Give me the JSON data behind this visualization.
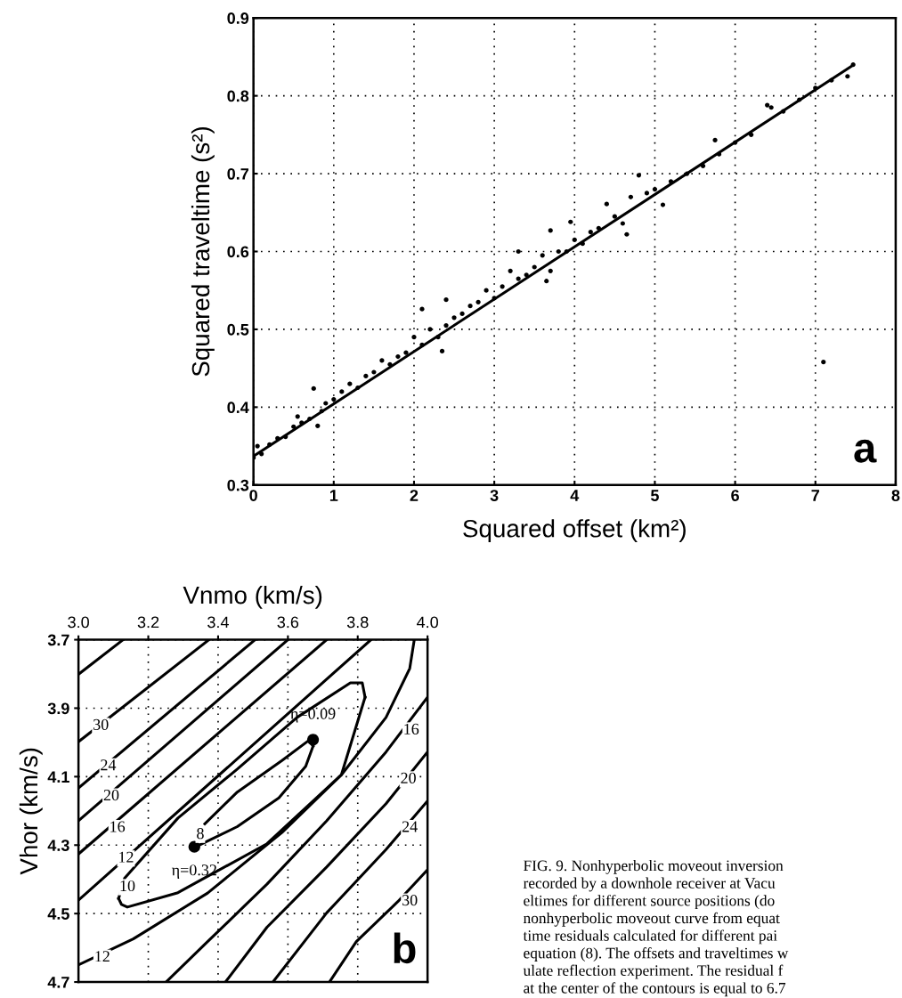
{
  "chart_data": [
    {
      "type": "scatter",
      "title": "a",
      "xlabel": "Squared offset (km²)",
      "ylabel": "Squared traveltime (s²)",
      "xlim": [
        0,
        8
      ],
      "ylim": [
        0.3,
        0.9
      ],
      "xticks": [
        0,
        1,
        2,
        3,
        4,
        5,
        6,
        7,
        8
      ],
      "yticks": [
        0.3,
        0.4,
        0.5,
        0.6,
        0.7,
        0.8,
        0.9
      ],
      "grid": true,
      "series": [
        {
          "type": "scatter",
          "color": "#000000",
          "marker": "circle",
          "x": [
            0.0,
            0.05,
            0.1,
            0.2,
            0.3,
            0.4,
            0.5,
            0.55,
            0.6,
            0.7,
            0.75,
            0.8,
            0.85,
            0.9,
            1.0,
            1.1,
            1.2,
            1.3,
            1.4,
            1.5,
            1.6,
            1.7,
            1.8,
            1.9,
            2.0,
            2.1,
            2.1,
            2.2,
            2.3,
            2.35,
            2.4,
            2.4,
            2.5,
            2.6,
            2.7,
            2.8,
            2.9,
            3.0,
            3.1,
            3.2,
            3.3,
            3.3,
            3.4,
            3.5,
            3.6,
            3.65,
            3.7,
            3.7,
            3.8,
            3.9,
            3.95,
            4.0,
            4.1,
            4.2,
            4.3,
            4.4,
            4.5,
            4.6,
            4.65,
            4.7,
            4.8,
            4.9,
            5.0,
            5.1,
            5.2,
            5.4,
            5.6,
            5.75,
            5.8,
            6.0,
            6.2,
            6.4,
            6.45,
            6.6,
            6.8,
            7.0,
            7.1,
            7.2,
            7.4,
            7.47
          ],
          "values": [
            0.335,
            0.35,
            0.34,
            0.352,
            0.36,
            0.362,
            0.375,
            0.388,
            0.38,
            0.385,
            0.424,
            0.376,
            0.395,
            0.405,
            0.41,
            0.42,
            0.43,
            0.425,
            0.44,
            0.445,
            0.46,
            0.455,
            0.465,
            0.47,
            0.49,
            0.48,
            0.526,
            0.5,
            0.49,
            0.472,
            0.505,
            0.538,
            0.515,
            0.52,
            0.53,
            0.535,
            0.55,
            0.54,
            0.555,
            0.575,
            0.565,
            0.6,
            0.57,
            0.58,
            0.595,
            0.562,
            0.575,
            0.627,
            0.6,
            0.6,
            0.638,
            0.615,
            0.61,
            0.625,
            0.63,
            0.661,
            0.645,
            0.636,
            0.622,
            0.67,
            0.698,
            0.675,
            0.68,
            0.66,
            0.69,
            0.7,
            0.71,
            0.743,
            0.725,
            0.74,
            0.75,
            0.788,
            0.785,
            0.78,
            0.795,
            0.81,
            0.458,
            0.82,
            0.825,
            0.84
          ]
        },
        {
          "type": "line",
          "color": "#000000",
          "x": [
            0,
            7.45
          ],
          "values": [
            0.337,
            0.838
          ]
        }
      ]
    },
    {
      "type": "line",
      "title": "b",
      "xlabel": "Vnmo (km/s)",
      "ylabel": "Vhor (km/s)",
      "xlim": [
        3.0,
        4.0
      ],
      "ylim": [
        4.7,
        3.7
      ],
      "xticks": [
        {
          "value": 3.0,
          "label": "3.0"
        },
        3.2,
        3.4,
        3.6,
        3.8,
        {
          "value": 4.0,
          "label": "4.0"
        }
      ],
      "yticks": [
        3.7,
        3.9,
        4.1,
        4.3,
        4.5,
        4.7
      ],
      "grid": true,
      "series": [
        {
          "color": "#000000",
          "x": [
            3.0,
            3.128
          ],
          "values": [
            3.801,
            3.7
          ]
        },
        {
          "color": "#000000",
          "x": [
            3.0,
            3.374
          ],
          "values": [
            3.998,
            3.7
          ]
        },
        {
          "color": "#000000",
          "x": [
            3.0,
            3.506
          ],
          "values": [
            4.133,
            3.7
          ]
        },
        {
          "color": "#000000",
          "x": [
            3.0,
            3.6
          ],
          "values": [
            4.229,
            3.7
          ]
        },
        {
          "color": "#000000",
          "x": [
            3.0,
            3.711
          ],
          "values": [
            4.326,
            3.7
          ]
        },
        {
          "color": "#000000",
          "x": [
            3.0,
            3.838
          ],
          "values": [
            4.461,
            3.7
          ]
        },
        {
          "color": "#000000",
          "x": [
            3.0,
            3.157,
            3.37,
            3.583,
            3.753,
            3.881,
            3.949,
            3.962
          ],
          "values": [
            4.65,
            4.574,
            4.44,
            4.263,
            4.095,
            3.927,
            3.784,
            3.7
          ]
        },
        {
          "color": "#000000",
          "x": [
            4.0,
            3.881,
            3.711,
            3.54,
            3.37,
            3.251
          ],
          "values": [
            3.868,
            4.028,
            4.229,
            4.414,
            4.582,
            4.7
          ]
        },
        {
          "color": "#000000",
          "x": [
            4.0,
            3.881,
            3.711,
            3.54,
            3.421
          ],
          "values": [
            4.028,
            4.179,
            4.364,
            4.54,
            4.7
          ]
        },
        {
          "color": "#000000",
          "x": [
            4.0,
            3.881,
            3.711,
            3.557
          ],
          "values": [
            4.171,
            4.313,
            4.498,
            4.7
          ]
        },
        {
          "color": "#000000",
          "x": [
            4.0,
            3.915,
            3.796,
            3.719
          ],
          "values": [
            4.372,
            4.465,
            4.582,
            4.7
          ]
        },
        {
          "color": "#000000",
          "x": [
            3.115,
            3.123,
            3.14,
            3.285,
            3.54,
            3.753,
            3.821
          ],
          "values": [
            4.456,
            4.473,
            4.481,
            4.439,
            4.296,
            4.095,
            3.868
          ]
        },
        {
          "color": "#000000",
          "x": [
            3.115,
            3.132,
            3.285,
            3.455,
            3.626,
            3.779,
            3.813,
            3.821
          ],
          "values": [
            4.456,
            4.397,
            4.221,
            4.078,
            3.927,
            3.826,
            3.826,
            3.868
          ]
        },
        {
          "color": "#000000",
          "x": [
            3.362,
            3.455,
            3.583,
            3.66,
            3.672
          ],
          "values": [
            4.238,
            4.145,
            4.053,
            3.994,
            4.011
          ]
        },
        {
          "color": "#000000",
          "x": [
            3.336,
            3.455,
            3.574,
            3.651,
            3.672
          ],
          "values": [
            4.305,
            4.246,
            4.162,
            4.07,
            4.011
          ]
        },
        {
          "type": "scatter",
          "name": "η=0.09",
          "color": "#000000",
          "marker": "circle",
          "x": [
            3.672
          ],
          "values": [
            3.992
          ]
        },
        {
          "type": "scatter",
          "name": "η=0.32",
          "color": "#000000",
          "marker": "circle",
          "x": [
            3.332
          ],
          "values": [
            4.305
          ]
        }
      ],
      "annotations": [
        {
          "text": "30",
          "x": 3.064,
          "y": 3.952
        },
        {
          "text": "24",
          "x": 3.085,
          "y": 4.07
        },
        {
          "text": "20",
          "x": 3.094,
          "y": 4.158
        },
        {
          "text": "16",
          "x": 3.111,
          "y": 4.25
        },
        {
          "text": "12",
          "x": 3.136,
          "y": 4.339
        },
        {
          "text": "10",
          "x": 3.14,
          "y": 4.423
        },
        {
          "text": "8",
          "x": 3.349,
          "y": 4.27
        },
        {
          "text": "12",
          "x": 3.068,
          "y": 4.629
        },
        {
          "text": "16",
          "x": 3.953,
          "y": 3.965
        },
        {
          "text": "20",
          "x": 3.945,
          "y": 4.108
        },
        {
          "text": "24",
          "x": 3.949,
          "y": 4.25
        },
        {
          "text": "30",
          "x": 3.949,
          "y": 4.465
        }
      ]
    },
    {
      "type": "other",
      "annotations": [
        "FIG. 9. Nonhyperbolic moveout inversion",
        "recorded by a downhole receiver at Vacu",
        "eltimes for different source positions (do",
        "nonhyperbolic moveout curve from equat",
        "time residuals calculated for different pai",
        "equation (8). The offsets and traveltimes w",
        "ulate reflection experiment. The residual f",
        "at the center of the contours is equal to 6.7"
      ]
    }
  ]
}
